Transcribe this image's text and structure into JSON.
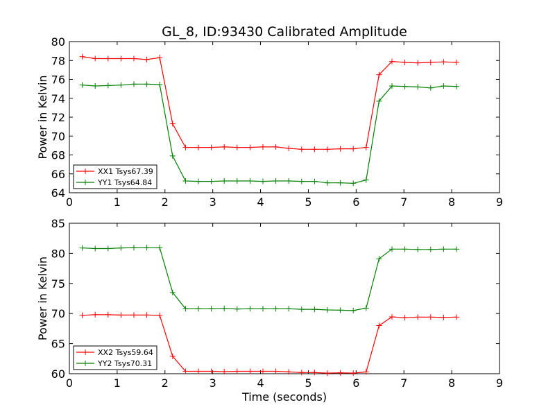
{
  "figure": {
    "title": "GL_8, ID:93430 Calibrated Amplitude",
    "xlabel": "Time (seconds)"
  },
  "chart_data": [
    {
      "type": "line",
      "ylabel": "Power in Kelvin",
      "xlim": [
        0,
        9
      ],
      "ylim": [
        64,
        80
      ],
      "xticks": [
        "0",
        "1",
        "2",
        "3",
        "4",
        "5",
        "6",
        "7",
        "8",
        "9"
      ],
      "yticks": [
        "64",
        "66",
        "68",
        "70",
        "72",
        "74",
        "76",
        "78",
        "80"
      ],
      "grid": false,
      "legend_position": "lower-left",
      "x": [
        0.27,
        0.54,
        0.81,
        1.08,
        1.35,
        1.62,
        1.89,
        2.16,
        2.43,
        2.7,
        2.97,
        3.24,
        3.51,
        3.78,
        4.05,
        4.32,
        4.59,
        4.86,
        5.13,
        5.4,
        5.67,
        5.94,
        6.21,
        6.48,
        6.75,
        7.02,
        7.29,
        7.56,
        7.83,
        8.1
      ],
      "series": [
        {
          "name": "XX1 Tsys67.39",
          "color": "#ff0000",
          "values": [
            78.4,
            78.2,
            78.2,
            78.2,
            78.2,
            78.1,
            78.3,
            71.3,
            68.8,
            68.8,
            68.8,
            68.85,
            68.8,
            68.8,
            68.85,
            68.85,
            68.7,
            68.6,
            68.6,
            68.6,
            68.65,
            68.65,
            68.8,
            76.5,
            77.9,
            77.8,
            77.75,
            77.8,
            77.85,
            77.8
          ]
        },
        {
          "name": "YY1 Tsys64.84",
          "color": "#008000",
          "values": [
            75.4,
            75.3,
            75.35,
            75.4,
            75.5,
            75.5,
            75.45,
            67.9,
            65.25,
            65.2,
            65.2,
            65.25,
            65.25,
            65.25,
            65.2,
            65.25,
            65.25,
            65.2,
            65.2,
            65.05,
            65.05,
            65.0,
            65.35,
            73.7,
            75.3,
            75.25,
            75.2,
            75.1,
            75.3,
            75.25
          ]
        }
      ]
    },
    {
      "type": "line",
      "ylabel": "Power in Kelvin",
      "xlim": [
        0,
        9
      ],
      "ylim": [
        60,
        85
      ],
      "xticks": [
        "0",
        "1",
        "2",
        "3",
        "4",
        "5",
        "6",
        "7",
        "8",
        "9"
      ],
      "yticks": [
        "60",
        "65",
        "70",
        "75",
        "80",
        "85"
      ],
      "grid": false,
      "legend_position": "lower-left",
      "x": [
        0.27,
        0.54,
        0.81,
        1.08,
        1.35,
        1.62,
        1.89,
        2.16,
        2.43,
        2.7,
        2.97,
        3.24,
        3.51,
        3.78,
        4.05,
        4.32,
        4.59,
        4.86,
        5.13,
        5.4,
        5.67,
        5.94,
        6.21,
        6.48,
        6.75,
        7.02,
        7.29,
        7.56,
        7.83,
        8.1
      ],
      "series": [
        {
          "name": "XX2 Tsys59.64",
          "color": "#ff0000",
          "values": [
            69.7,
            69.8,
            69.8,
            69.75,
            69.75,
            69.75,
            69.7,
            62.9,
            60.4,
            60.4,
            60.4,
            60.35,
            60.4,
            60.4,
            60.4,
            60.4,
            60.3,
            60.2,
            60.2,
            60.1,
            60.15,
            60.1,
            60.3,
            68.0,
            69.45,
            69.3,
            69.4,
            69.4,
            69.35,
            69.4
          ]
        },
        {
          "name": "YY2 Tsys70.31",
          "color": "#008000",
          "values": [
            80.9,
            80.8,
            80.8,
            80.9,
            80.95,
            80.95,
            80.95,
            73.5,
            70.8,
            70.8,
            70.8,
            70.85,
            70.75,
            70.8,
            70.8,
            70.8,
            70.8,
            70.7,
            70.7,
            70.6,
            70.55,
            70.5,
            70.9,
            79.1,
            80.7,
            80.7,
            80.65,
            80.65,
            80.7,
            80.7
          ]
        }
      ]
    }
  ]
}
